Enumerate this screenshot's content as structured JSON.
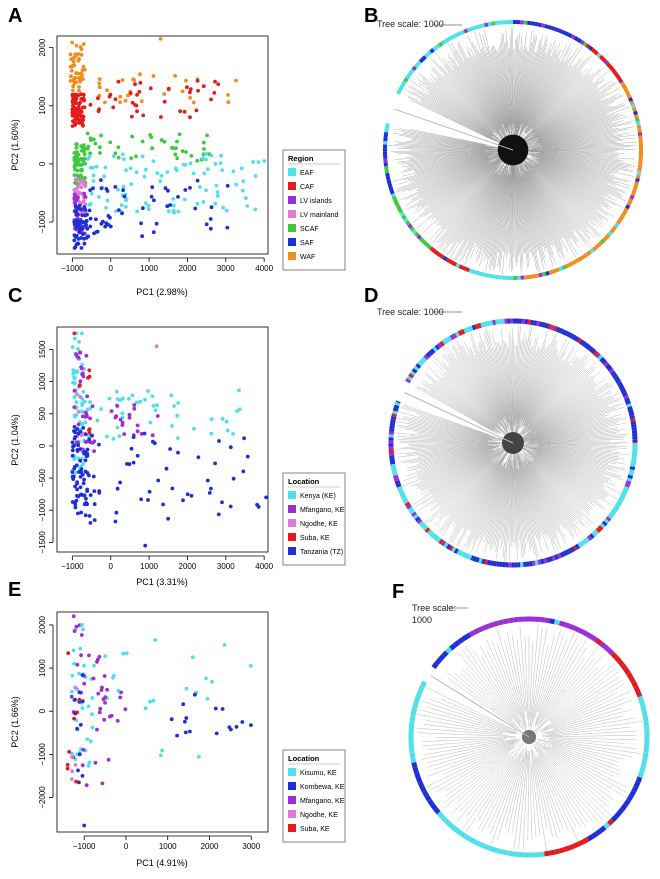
{
  "colors": {
    "cyan": "#4fe0ea",
    "red": "#e41a1c",
    "purple": "#9a2fd6",
    "pink": "#e07ad6",
    "green": "#3ec93e",
    "blue": "#1f2fd6",
    "orange": "#f28c1e"
  },
  "panels": {
    "A": {
      "letter": "A"
    },
    "B": {
      "letter": "B",
      "tree_scale": "Tree scale: 1000"
    },
    "C": {
      "letter": "C"
    },
    "D": {
      "letter": "D",
      "tree_scale": "Tree scale: 1000"
    },
    "E": {
      "letter": "E"
    },
    "F": {
      "letter": "F",
      "tree_scale_line1": "Tree scale:",
      "tree_scale_line2": "1000"
    }
  },
  "chart_data": [
    {
      "id": "A",
      "type": "scatter",
      "xlabel": "PC1 (2.98%)",
      "ylabel": "PC2 (1.60%)",
      "xlim": [
        -1400,
        4100
      ],
      "ylim": [
        -1550,
        2200
      ],
      "xticks": [
        -1000,
        0,
        1000,
        2000,
        3000,
        4000
      ],
      "yticks": [
        -1000,
        0,
        1000,
        2000
      ],
      "legend_title": "Region",
      "series": [
        {
          "name": "EAF",
          "color": "cyan"
        },
        {
          "name": "CAF",
          "color": "red"
        },
        {
          "name": "LV islands",
          "color": "purple"
        },
        {
          "name": "LV mainland",
          "color": "pink"
        },
        {
          "name": "SCAF",
          "color": "green"
        },
        {
          "name": "SAF",
          "color": "blue"
        },
        {
          "name": "WAF",
          "color": "orange"
        }
      ]
    },
    {
      "id": "C",
      "type": "scatter",
      "xlabel": "PC1 (3.31%)",
      "ylabel": "PC2 (1.04%)",
      "xlim": [
        -1400,
        4100
      ],
      "ylim": [
        -1650,
        1850
      ],
      "xticks": [
        -1000,
        0,
        1000,
        2000,
        3000,
        4000
      ],
      "yticks": [
        -1500,
        -1000,
        -500,
        0,
        500,
        1000,
        1500
      ],
      "legend_title": "Location",
      "series": [
        {
          "name": "Kenya (KE)",
          "color": "cyan"
        },
        {
          "name": "Mfangano, KE",
          "color": "purple"
        },
        {
          "name": "Ngodhe, KE",
          "color": "pink"
        },
        {
          "name": "Suba, KE",
          "color": "red"
        },
        {
          "name": "Tanzania (TZ)",
          "color": "blue"
        }
      ]
    },
    {
      "id": "E",
      "type": "scatter",
      "xlabel": "PC1 (4.91%)",
      "ylabel": "PC2 (1.66%)",
      "xlim": [
        -1650,
        3400
      ],
      "ylim": [
        -2800,
        2300
      ],
      "xticks": [
        -1000,
        0,
        1000,
        2000,
        3000
      ],
      "yticks": [
        -2000,
        -1000,
        0,
        1000,
        2000
      ],
      "legend_title": "Location",
      "series": [
        {
          "name": "Kisumu, KE",
          "color": "cyan"
        },
        {
          "name": "Kombewa, KE",
          "color": "blue"
        },
        {
          "name": "Mfangano, KE",
          "color": "purple"
        },
        {
          "name": "Ngodhe, KE",
          "color": "pink"
        },
        {
          "name": "Suba, KE",
          "color": "red"
        }
      ]
    }
  ]
}
